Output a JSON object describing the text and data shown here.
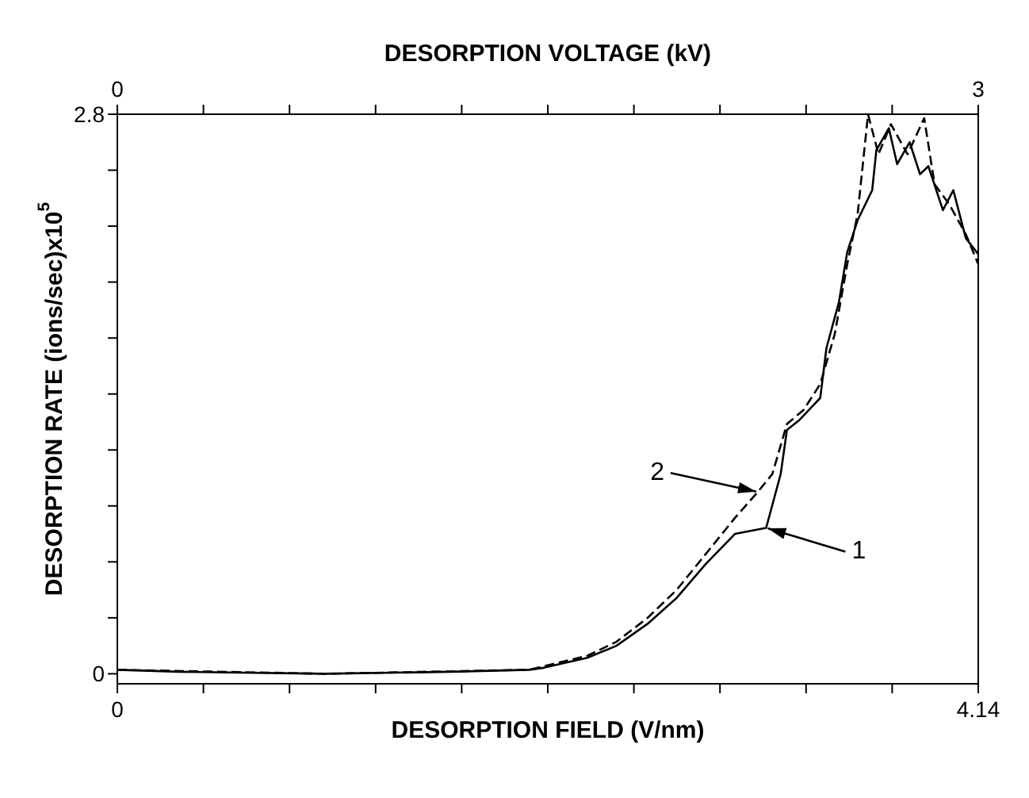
{
  "chart_data": {
    "type": "line",
    "xlabel": "DESORPTION FIELD (V/nm)",
    "x2label": "DESORPTION VOLTAGE (kV)",
    "ylabel": "DESORPTION RATE (ions/sec)x10$^{5}$",
    "xlim": [
      0,
      4.14
    ],
    "xticks": [
      0,
      {
        "value": 0.414,
        "label": null
      },
      {
        "value": 0.828,
        "label": null
      },
      {
        "value": 1.242,
        "label": null
      },
      {
        "value": 1.656,
        "label": null
      },
      {
        "value": 2.07,
        "label": null
      },
      {
        "value": 2.484,
        "label": null
      },
      {
        "value": 2.898,
        "label": null
      },
      {
        "value": 3.312,
        "label": null
      },
      {
        "value": 3.726,
        "label": null
      },
      4.14
    ],
    "x2lim": [
      0,
      3
    ],
    "x2ticks": [
      0,
      {
        "value": 0.3,
        "label": null
      },
      {
        "value": 0.6,
        "label": null
      },
      {
        "value": 0.9,
        "label": null
      },
      {
        "value": 1.2,
        "label": null
      },
      {
        "value": 1.5,
        "label": null
      },
      {
        "value": 1.8,
        "label": null
      },
      {
        "value": 2.1,
        "label": null
      },
      {
        "value": 2.4,
        "label": null
      },
      {
        "value": 2.7,
        "label": null
      },
      3
    ],
    "ylim": [
      -0.05,
      2.8
    ],
    "yticks": [
      0,
      {
        "value": 0.28,
        "label": null
      },
      {
        "value": 0.56,
        "label": null
      },
      {
        "value": 0.84,
        "label": null
      },
      {
        "value": 1.12,
        "label": null
      },
      {
        "value": 1.4,
        "label": null
      },
      {
        "value": 1.68,
        "label": null
      },
      {
        "value": 1.96,
        "label": null
      },
      {
        "value": 2.24,
        "label": null
      },
      {
        "value": 2.52,
        "label": null
      },
      2.8
    ],
    "grid": false,
    "legend": false,
    "marker": "none",
    "series": [
      {
        "color": "#000000",
        "line_style": "solid",
        "x": [
          0,
          0.3,
          1.0,
          1.6,
          1.98,
          2.05,
          2.26,
          2.4,
          2.55,
          2.69,
          2.83,
          2.97,
          3.12,
          3.19,
          3.22,
          3.28,
          3.38,
          3.41,
          3.47,
          3.51,
          3.56,
          3.63,
          3.65,
          3.71,
          3.75,
          3.81,
          3.86,
          3.9,
          3.97,
          4.02,
          4.08,
          4.14
        ],
        "values": [
          0.02,
          0.01,
          0.0,
          0.01,
          0.02,
          0.03,
          0.08,
          0.14,
          0.25,
          0.38,
          0.55,
          0.7,
          0.73,
          1.0,
          1.22,
          1.27,
          1.38,
          1.63,
          1.86,
          2.11,
          2.27,
          2.42,
          2.62,
          2.73,
          2.55,
          2.66,
          2.5,
          2.54,
          2.32,
          2.42,
          2.18,
          2.1
        ]
      },
      {
        "color": "#000000",
        "line_style": "dashed",
        "x": [
          0,
          1.0,
          1.98,
          2.26,
          2.4,
          2.55,
          2.69,
          2.83,
          2.97,
          3.08,
          3.15,
          3.22,
          3.3,
          3.38,
          3.45,
          3.51,
          3.56,
          3.61,
          3.66,
          3.72,
          3.8,
          3.88,
          3.93,
          4.0,
          4.08,
          4.14
        ],
        "values": [
          0.02,
          0.0,
          0.02,
          0.09,
          0.16,
          0.28,
          0.42,
          0.6,
          0.78,
          0.91,
          1.0,
          1.25,
          1.32,
          1.45,
          1.7,
          2.05,
          2.3,
          2.8,
          2.6,
          2.75,
          2.6,
          2.78,
          2.45,
          2.35,
          2.2,
          2.05
        ]
      }
    ],
    "annotations": [
      {
        "text": "2",
        "x": 3.08,
        "y": 0.91
      },
      {
        "text": "1",
        "x": 3.12,
        "y": 0.73
      }
    ]
  }
}
